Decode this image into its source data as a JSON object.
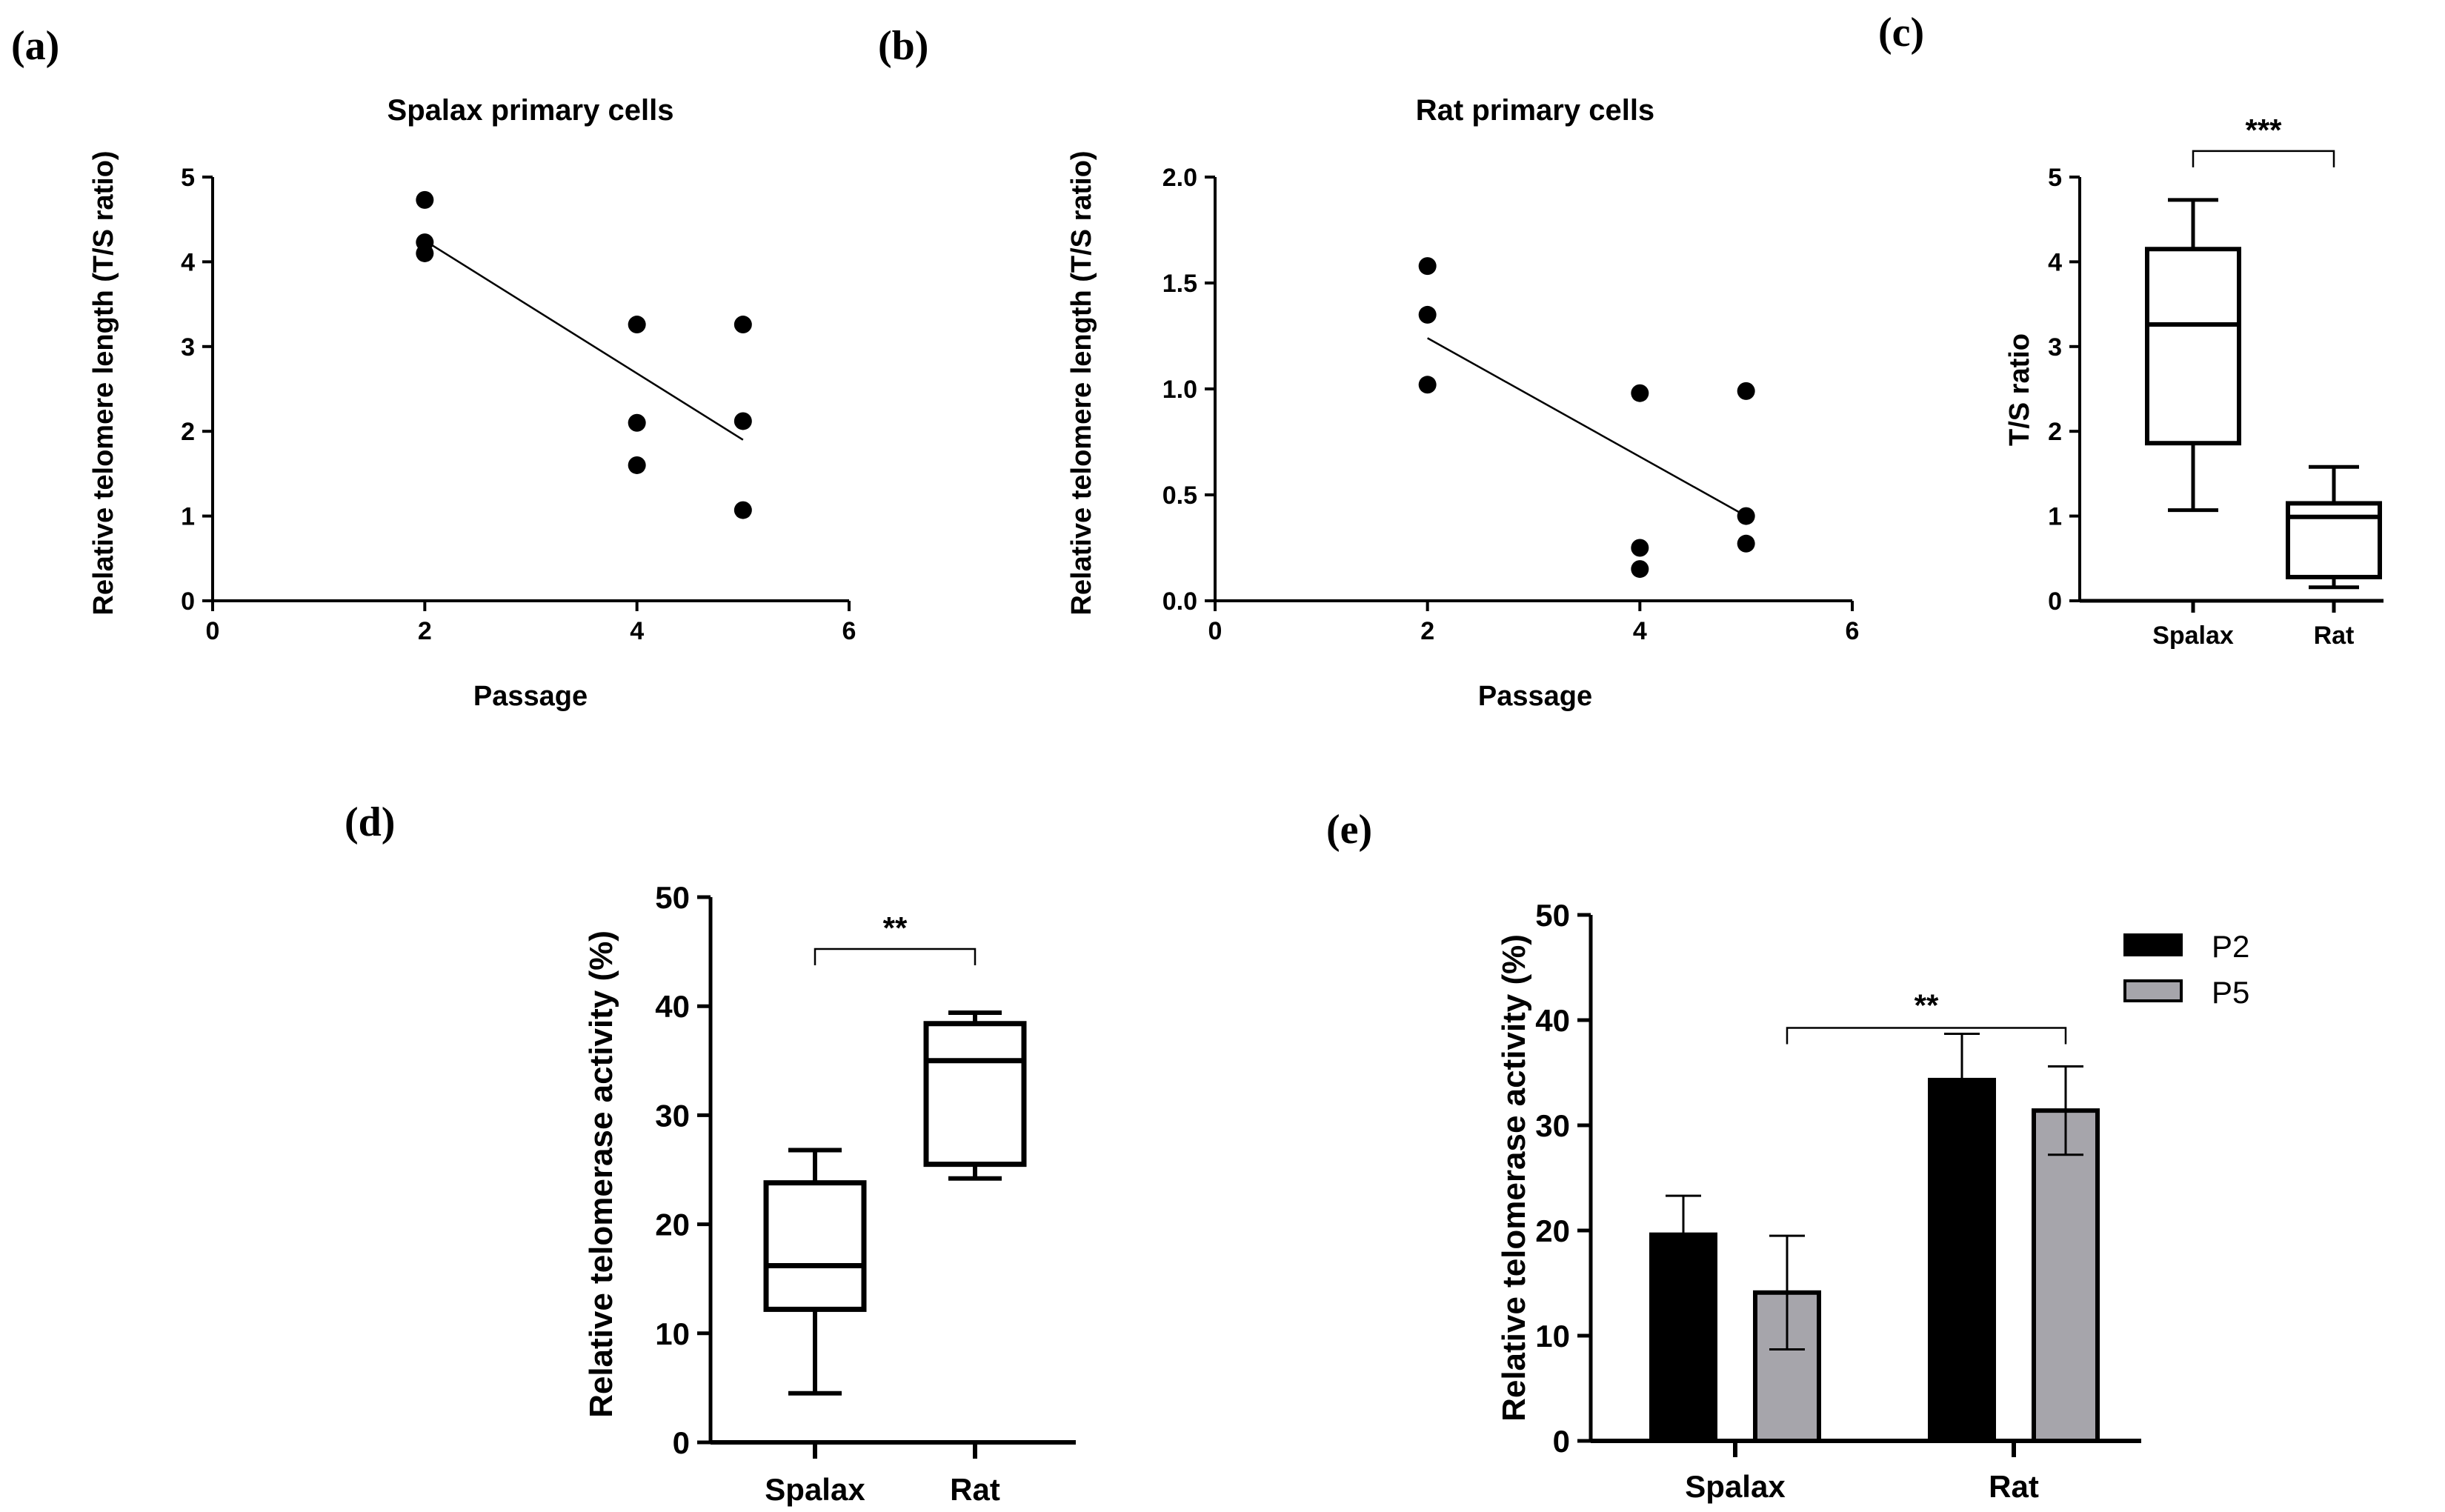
{
  "panel_labels": [
    "(a)",
    "(b)",
    "(c)",
    "(d)",
    "(e)"
  ],
  "colors": {
    "axis": "#000000",
    "p2": "#000000",
    "p5": "#a6a5ab",
    "box_fill": "#ffffff"
  },
  "chart_data": [
    {
      "id": "a",
      "type": "scatter",
      "title": "Spalax primary cells",
      "xlabel": "Passage",
      "ylabel": "Relative telomere length (T/S ratio)",
      "xlim": [
        0,
        6
      ],
      "ylim": [
        0,
        5
      ],
      "xticks": [
        0,
        2,
        4,
        6
      ],
      "yticks": [
        0,
        1,
        2,
        3,
        4,
        5
      ],
      "points": [
        {
          "x": 2,
          "y": 4.73
        },
        {
          "x": 2,
          "y": 4.23
        },
        {
          "x": 2,
          "y": 4.1
        },
        {
          "x": 4,
          "y": 3.26
        },
        {
          "x": 4,
          "y": 2.1
        },
        {
          "x": 4,
          "y": 1.6
        },
        {
          "x": 5,
          "y": 3.26
        },
        {
          "x": 5,
          "y": 2.12
        },
        {
          "x": 5,
          "y": 1.07
        }
      ],
      "fit_line": [
        {
          "x": 2,
          "y": 4.25
        },
        {
          "x": 5,
          "y": 1.9
        }
      ],
      "grid": false
    },
    {
      "id": "b",
      "type": "scatter",
      "title": "Rat primary cells",
      "xlabel": "Passage",
      "ylabel": "Relative telomere length (T/S ratio)",
      "xlim": [
        0,
        6
      ],
      "ylim": [
        0,
        2.0
      ],
      "xticks": [
        0,
        2,
        4,
        6
      ],
      "yticks": [
        0.0,
        0.5,
        1.0,
        1.5,
        2.0
      ],
      "ytick_labels": [
        "0.0",
        "0.5",
        "1.0",
        "1.5",
        "2.0"
      ],
      "points": [
        {
          "x": 2,
          "y": 1.58
        },
        {
          "x": 2,
          "y": 1.35
        },
        {
          "x": 2,
          "y": 1.02
        },
        {
          "x": 4,
          "y": 0.98
        },
        {
          "x": 4,
          "y": 0.25
        },
        {
          "x": 4,
          "y": 0.15
        },
        {
          "x": 5,
          "y": 0.99
        },
        {
          "x": 5,
          "y": 0.4
        },
        {
          "x": 5,
          "y": 0.27
        }
      ],
      "fit_line": [
        {
          "x": 2,
          "y": 1.24
        },
        {
          "x": 5,
          "y": 0.4
        }
      ],
      "grid": false
    },
    {
      "id": "c",
      "type": "box",
      "ylabel": "T/S ratio",
      "ylim": [
        0,
        5
      ],
      "yticks": [
        0,
        1,
        2,
        3,
        4,
        5
      ],
      "categories": [
        "Spalax",
        "Rat"
      ],
      "boxes": [
        {
          "min": 1.07,
          "q1": 1.86,
          "median": 3.26,
          "q3": 4.15,
          "max": 4.73
        },
        {
          "min": 0.16,
          "q1": 0.28,
          "median": 0.99,
          "q3": 1.15,
          "max": 1.58
        }
      ],
      "significance": {
        "from": 0,
        "to": 1,
        "label": "***"
      }
    },
    {
      "id": "d",
      "type": "box",
      "ylabel": "Relative telomerase activity (%)",
      "ylim": [
        0,
        50
      ],
      "yticks": [
        0,
        10,
        20,
        30,
        40,
        50
      ],
      "categories": [
        "Spalax",
        "Rat"
      ],
      "boxes": [
        {
          "min": 4.5,
          "q1": 12.2,
          "median": 16.2,
          "q3": 23.8,
          "max": 26.8
        },
        {
          "min": 24.2,
          "q1": 25.5,
          "median": 35.0,
          "q3": 38.4,
          "max": 39.4
        }
      ],
      "significance": {
        "from": 0,
        "to": 1,
        "label": "**"
      }
    },
    {
      "id": "e",
      "type": "bar",
      "ylabel": "Relative telomerase activity (%)",
      "ylim": [
        0,
        50
      ],
      "yticks": [
        0,
        10,
        20,
        30,
        40,
        50
      ],
      "categories": [
        "Spalax",
        "Rat"
      ],
      "series": [
        {
          "name": "P2",
          "values": [
            19.6,
            34.3
          ],
          "errors": [
            3.7,
            4.4
          ]
        },
        {
          "name": "P5",
          "values": [
            14.1,
            31.4
          ],
          "errors": [
            5.4,
            4.2
          ]
        }
      ],
      "legend": "top-right",
      "significance": {
        "from_series": 1,
        "from_cat": 0,
        "to_series": 1,
        "to_cat": 1,
        "label": "**"
      }
    }
  ]
}
